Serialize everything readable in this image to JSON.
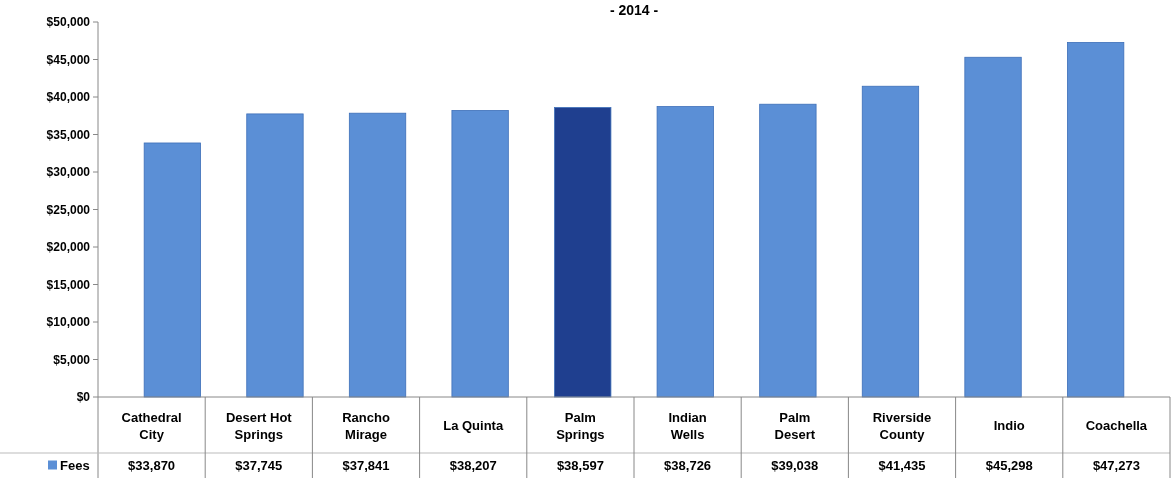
{
  "chart_data": {
    "type": "bar",
    "title": "- 2014 -",
    "categories": [
      "Cathedral City",
      "Desert Hot Springs",
      "Rancho Mirage",
      "La Quinta",
      "Palm Springs",
      "Indian Wells",
      "Palm Desert",
      "Riverside County",
      "Indio",
      "Coachella"
    ],
    "series": [
      {
        "name": "Fees",
        "color": "#5b8fd6",
        "colors": [
          "#5b8fd6",
          "#5b8fd6",
          "#5b8fd6",
          "#5b8fd6",
          "#1f3f8f",
          "#5b8fd6",
          "#5b8fd6",
          "#5b8fd6",
          "#5b8fd6",
          "#5b8fd6"
        ],
        "values": [
          33870,
          37745,
          37841,
          38207,
          38597,
          38726,
          39038,
          41435,
          45298,
          47273
        ],
        "value_labels": [
          "$33,870",
          "$37,745",
          "$37,841",
          "$38,207",
          "$38,597",
          "$38,726",
          "$39,038",
          "$41,435",
          "$45,298",
          "$47,273"
        ]
      }
    ],
    "ylim": [
      0,
      50000
    ],
    "yticks": [
      {
        "value": 0,
        "label": "$0"
      },
      {
        "value": 5000,
        "label": "$5,000"
      },
      {
        "value": 10000,
        "label": "$10,000"
      },
      {
        "value": 15000,
        "label": "$15,000"
      },
      {
        "value": 20000,
        "label": "$20,000"
      },
      {
        "value": 25000,
        "label": "$25,000"
      },
      {
        "value": 30000,
        "label": "$30,000"
      },
      {
        "value": 35000,
        "label": "$35,000"
      },
      {
        "value": 40000,
        "label": "$40,000"
      },
      {
        "value": 45000,
        "label": "$45,000"
      },
      {
        "value": 50000,
        "label": "$50,000"
      }
    ],
    "legend": "bottom left"
  }
}
